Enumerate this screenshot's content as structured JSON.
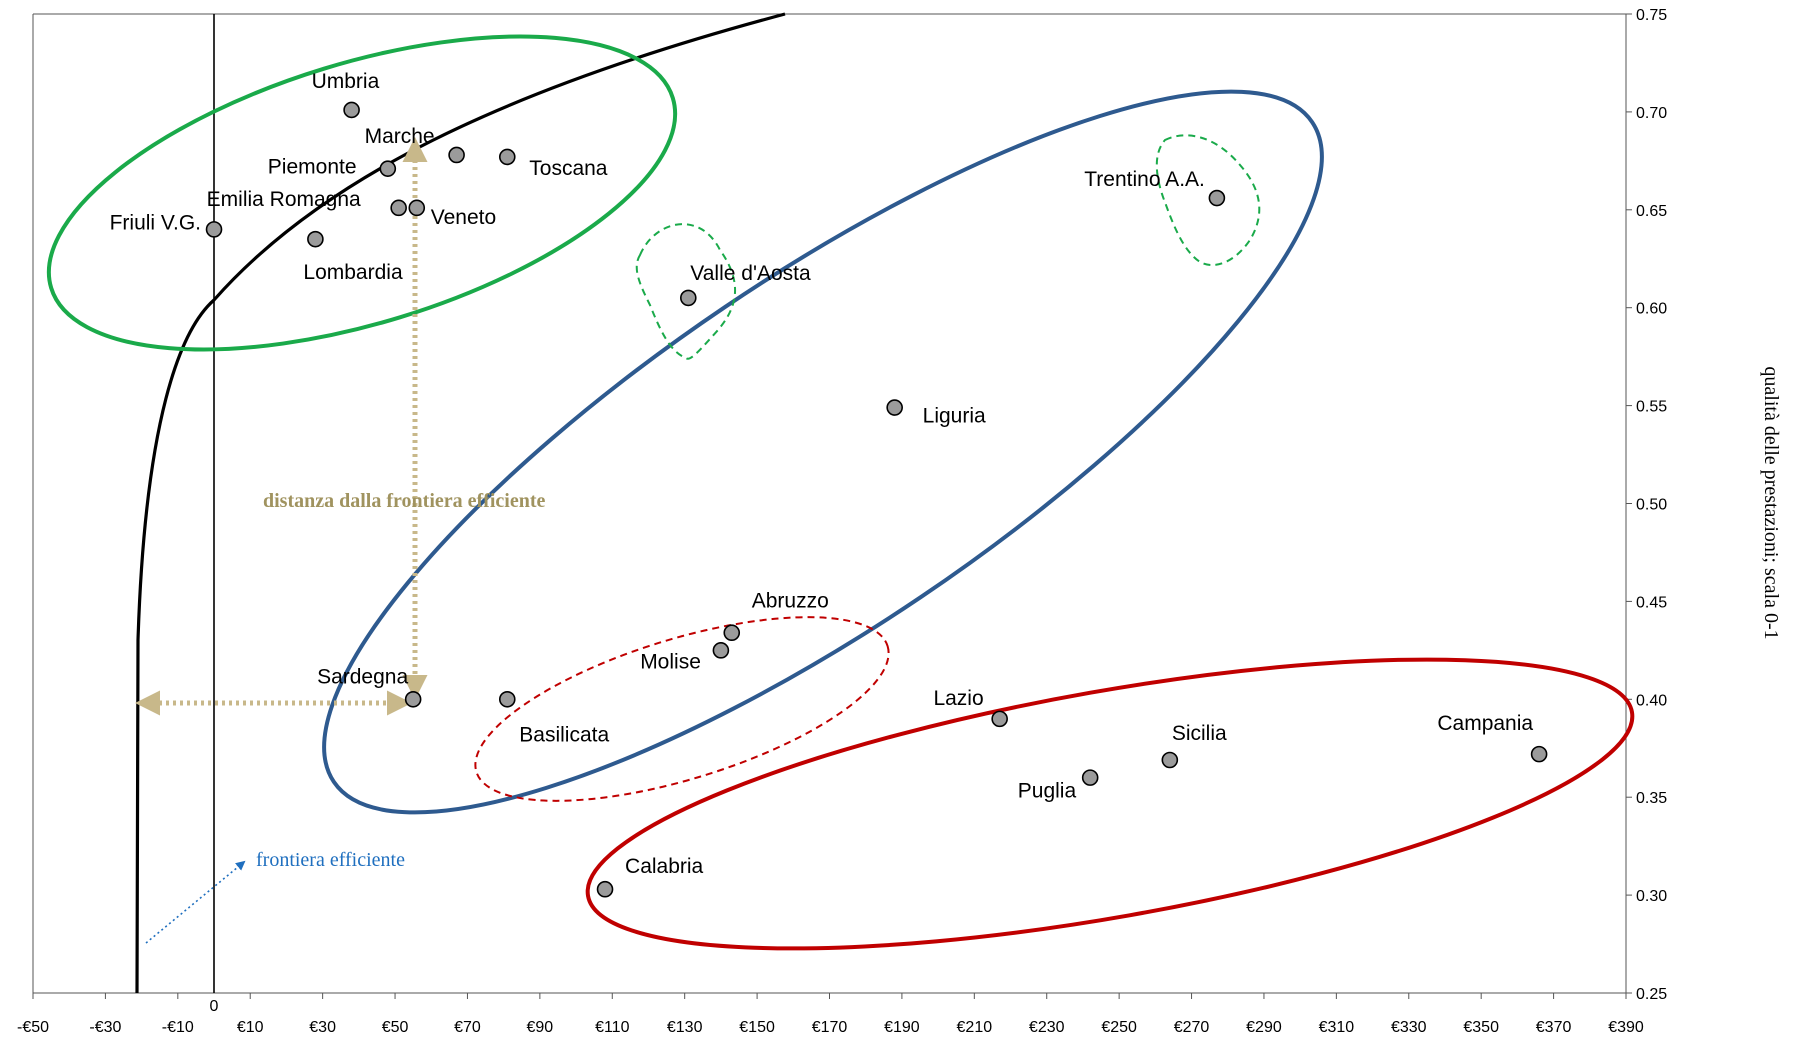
{
  "chart_data": {
    "type": "scatter",
    "ylabel": "qualità delle prestazioni; scala 0-1",
    "xlim": [
      -50,
      390
    ],
    "ylim": [
      0.25,
      0.75
    ],
    "x_ticks": [
      "-€50",
      "-€30",
      "-€10",
      "€10",
      "€30",
      "€50",
      "€70",
      "€90",
      "€110",
      "€130",
      "€150",
      "€170",
      "€190",
      "€210",
      "€230",
      "€250",
      "€270",
      "€290",
      "€310",
      "€330",
      "€350",
      "€370",
      "€390"
    ],
    "x_zero_label": "0",
    "y_ticks": [
      "0.25",
      "0.30",
      "0.35",
      "0.40",
      "0.45",
      "0.50",
      "0.55",
      "0.60",
      "0.65",
      "0.70",
      "0.75"
    ],
    "points": [
      {
        "label": "Friuli V.G.",
        "x": 0,
        "y": 0.64
      },
      {
        "label": "Umbria",
        "x": 38,
        "y": 0.701
      },
      {
        "label": "Marche",
        "x": 67,
        "y": 0.678
      },
      {
        "label": "Toscana",
        "x": 81,
        "y": 0.677
      },
      {
        "label": "Piemonte",
        "x": 48,
        "y": 0.671
      },
      {
        "label": "Emilia Romagna",
        "x": 51,
        "y": 0.651
      },
      {
        "label": "Veneto",
        "x": 56,
        "y": 0.651
      },
      {
        "label": "Lombardia",
        "x": 28,
        "y": 0.635
      },
      {
        "label": "Valle d'Aosta",
        "x": 131,
        "y": 0.605
      },
      {
        "label": "Trentino A.A.",
        "x": 277,
        "y": 0.656
      },
      {
        "label": "Liguria",
        "x": 188,
        "y": 0.549
      },
      {
        "label": "Abruzzo",
        "x": 143,
        "y": 0.434
      },
      {
        "label": "Molise",
        "x": 140,
        "y": 0.425
      },
      {
        "label": "Sardegna",
        "x": 55,
        "y": 0.4
      },
      {
        "label": "Basilicata",
        "x": 81,
        "y": 0.4
      },
      {
        "label": "Lazio",
        "x": 217,
        "y": 0.39
      },
      {
        "label": "Sicilia",
        "x": 264,
        "y": 0.369
      },
      {
        "label": "Puglia",
        "x": 242,
        "y": 0.36
      },
      {
        "label": "Campania",
        "x": 366,
        "y": 0.372
      },
      {
        "label": "Calabria",
        "x": 108,
        "y": 0.303
      }
    ],
    "annotations": {
      "distance": "distanza dalla frontiera efficiente",
      "frontier": "frontiera efficiente"
    },
    "colors": {
      "green": "#1aaa4a",
      "blue": "#2e5a8f",
      "red": "#c00000",
      "tan": "#c8b88a",
      "distance_text": "#a0935f",
      "frontier_text": "#1f6fbf",
      "point_fill": "#9b9b9b"
    },
    "legend": "none",
    "grid": false
  }
}
